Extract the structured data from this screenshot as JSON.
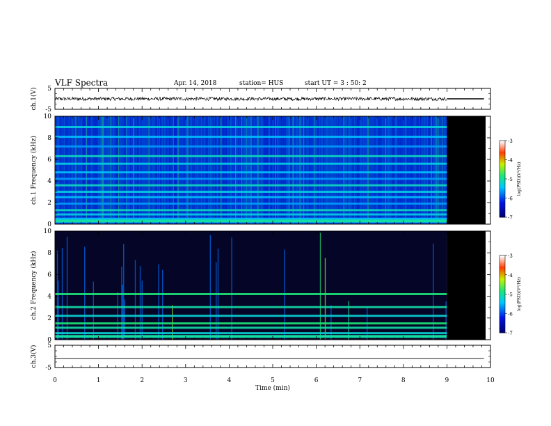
{
  "header": {
    "title": "VLF Spectra",
    "date": "Apr. 14, 2018",
    "station": "station= HUS",
    "start": "start  UT =  3 : 50: 2"
  },
  "chart_data": [
    {
      "type": "line",
      "panel": "ch1-waveform",
      "ylabel": "ch.1(V)",
      "ylim": [
        -5,
        5
      ],
      "yticks": [
        -5,
        5
      ],
      "xlim": [
        0,
        10
      ],
      "series": [
        {
          "x": [
            0,
            9,
            9,
            9.85
          ],
          "values": [
            0,
            0,
            0,
            0
          ]
        }
      ],
      "noise_amplitude_until_min": 9
    },
    {
      "type": "heatmap",
      "panel": "ch1-spectrogram",
      "ylabel": "ch.1  Frequency (kHz)",
      "ylim": [
        0,
        10
      ],
      "yticks": [
        0,
        2,
        4,
        6,
        8,
        10
      ],
      "xlim": [
        0,
        10
      ],
      "data_end_min": 9,
      "colorbar": {
        "label": "log(PSD)(V²/Hz)",
        "range": [
          -7,
          -3
        ],
        "ticks": [
          -3,
          -4,
          -5,
          -6,
          -7
        ]
      },
      "horizontal_bands_khz": [
        0.2,
        0.5,
        0.9,
        1.3,
        1.9,
        2.5,
        3.0,
        3.6,
        4.2,
        4.8,
        5.6,
        6.3,
        7.2,
        8.1,
        9.0
      ]
    },
    {
      "type": "heatmap",
      "panel": "ch2-spectrogram",
      "ylabel": "ch.2  Frequency (kHz)",
      "ylim": [
        0,
        10
      ],
      "yticks": [
        0,
        2,
        4,
        6,
        8,
        10
      ],
      "xlim": [
        0,
        10
      ],
      "data_end_min": 9,
      "colorbar": {
        "label": "log(PSD)(V²/Hz)",
        "range": [
          -7,
          -3
        ],
        "ticks": [
          -3,
          -4,
          -5,
          -6,
          -7
        ]
      },
      "horizontal_bands_khz": [
        0.6,
        1.1,
        1.5,
        2.2,
        3.0,
        4.2
      ]
    },
    {
      "type": "line",
      "panel": "ch3-waveform",
      "ylabel": "ch.3(V)",
      "ylim": [
        -5,
        5
      ],
      "yticks": [
        -5,
        5
      ],
      "xlim": [
        0,
        10
      ],
      "xticks": [
        0,
        1,
        2,
        3,
        4,
        5,
        6,
        7,
        8,
        9,
        10
      ],
      "xlabel": "Time  (min)",
      "series": [
        {
          "x": [
            0,
            9.85
          ],
          "values": [
            -1,
            -1
          ]
        }
      ]
    }
  ]
}
